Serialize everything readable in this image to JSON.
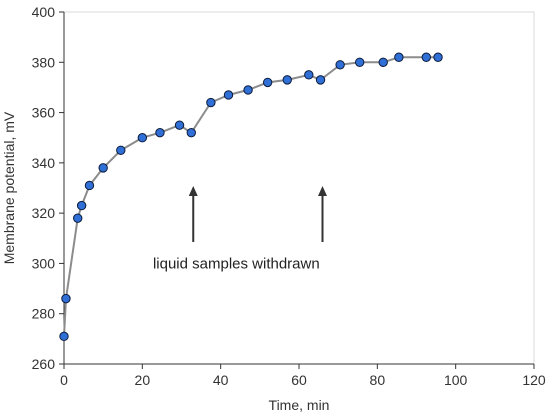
{
  "chart_data": {
    "type": "line",
    "xlabel": "Time, min",
    "ylabel": "Membrane potential, mV",
    "xlim": [
      0,
      120
    ],
    "ylim": [
      260,
      400
    ],
    "xticks": [
      0,
      20,
      40,
      60,
      80,
      100,
      120
    ],
    "yticks": [
      260,
      280,
      300,
      320,
      340,
      360,
      380,
      400
    ],
    "grid": false,
    "series": [
      {
        "x": [
          0,
          0.5,
          3.5,
          4.5,
          6.5,
          10,
          14.5,
          20,
          24.5,
          29.5,
          32.5,
          37.5,
          42,
          47,
          52,
          57,
          62.5,
          65.5,
          70.5,
          75.5,
          81.5,
          85.5,
          92.5,
          95.5
        ],
        "y": [
          271,
          286,
          318,
          323,
          331,
          338,
          345,
          350,
          352,
          355,
          352,
          364,
          367,
          369,
          372,
          373,
          375,
          373,
          379,
          380,
          380,
          382,
          382,
          382
        ]
      }
    ],
    "annotations": [
      {
        "text": "liquid samples withdrawn",
        "x": 44,
        "y": 300,
        "arrows_at_x": [
          33,
          66
        ]
      }
    ],
    "colors": {
      "marker_fill": "#2f6fd6",
      "marker_stroke": "#0d1b3a",
      "line": "#8c8c8c",
      "arrow": "#333333"
    }
  }
}
